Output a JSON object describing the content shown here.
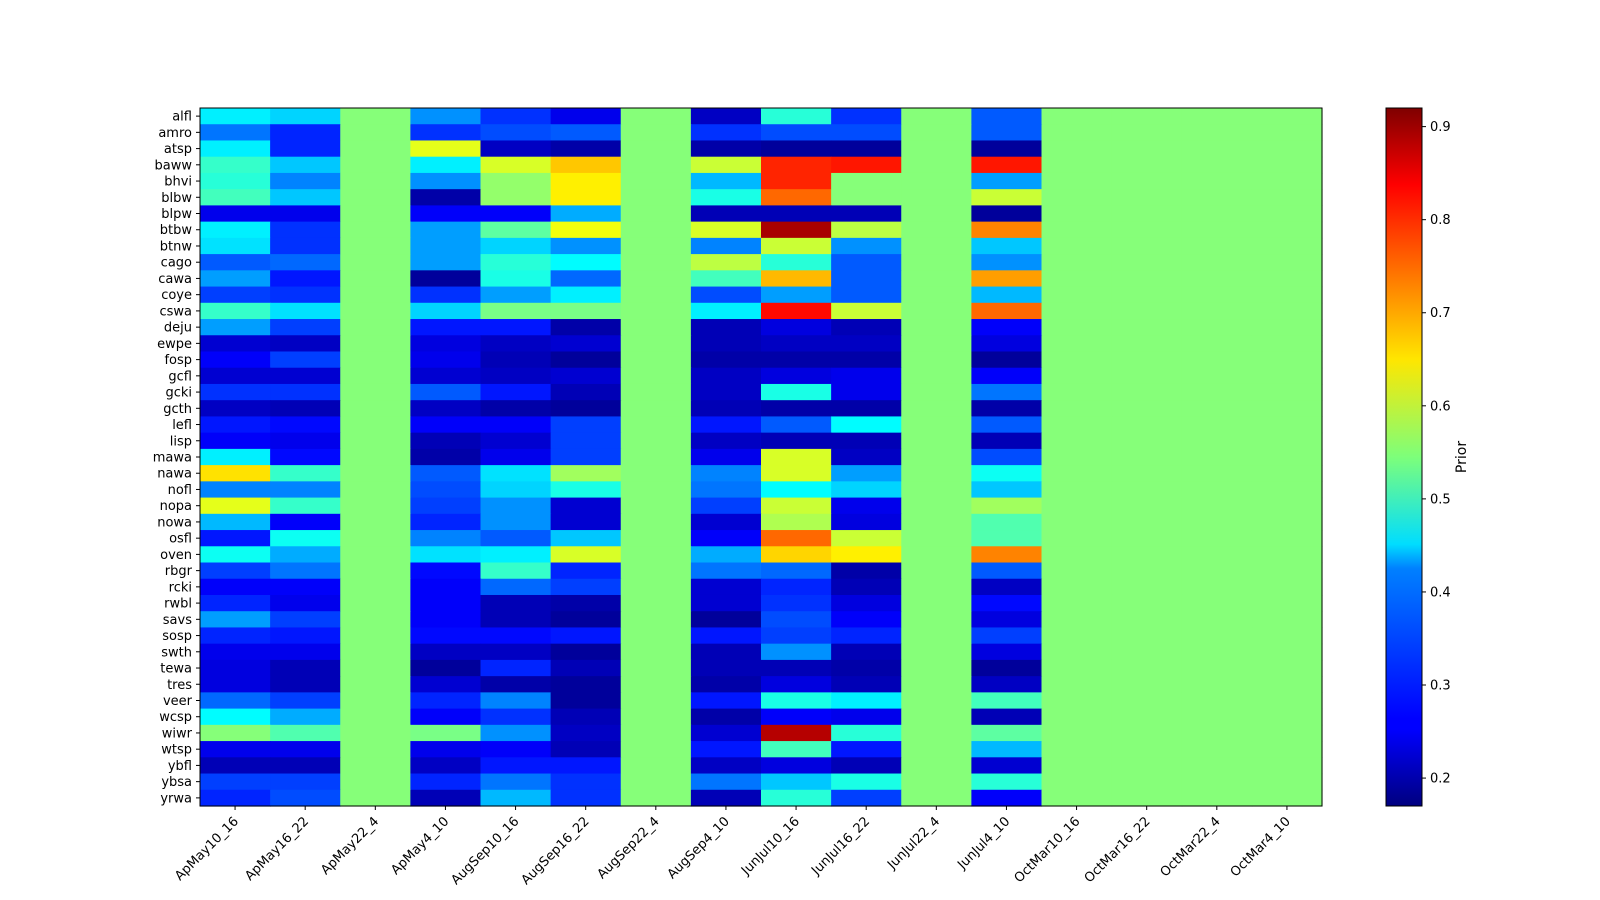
{
  "chart_data": {
    "type": "heatmap",
    "colormap": "jet",
    "title": "",
    "xlabel": "",
    "ylabel": "",
    "colorbar": {
      "label": "Prior",
      "range": [
        0.17,
        0.92
      ],
      "ticks": [
        "0.2",
        "0.3",
        "0.4",
        "0.5",
        "0.6",
        "0.7",
        "0.8",
        "0.9"
      ]
    },
    "x": [
      "ApMay10_16",
      "ApMay16_22",
      "ApMay22_4",
      "ApMay4_10",
      "AugSep10_16",
      "AugSep16_22",
      "AugSep22_4",
      "AugSep4_10",
      "JunJul10_16",
      "JunJul16_22",
      "JunJul22_4",
      "JunJul4_10",
      "OctMar10_16",
      "OctMar16_22",
      "OctMar22_4",
      "OctMar4_10"
    ],
    "y": [
      "alfl",
      "amro",
      "atsp",
      "baww",
      "bhvi",
      "blbw",
      "blpw",
      "btbw",
      "btnw",
      "cago",
      "cawa",
      "coye",
      "cswa",
      "deju",
      "ewpe",
      "fosp",
      "gcfl",
      "gcki",
      "gcth",
      "lefl",
      "lisp",
      "mawa",
      "nawa",
      "nofl",
      "nopa",
      "nowa",
      "osfl",
      "oven",
      "rbgr",
      "rcki",
      "rwbl",
      "savs",
      "sosp",
      "swth",
      "tewa",
      "tres",
      "veer",
      "wcsp",
      "wiwr",
      "wtsp",
      "ybfl",
      "ybsa",
      "yrwa"
    ],
    "z": [
      [
        0.44,
        0.42,
        0.55,
        0.37,
        0.3,
        0.25,
        0.55,
        0.22,
        0.48,
        0.3,
        0.55,
        0.33,
        0.55,
        0.55,
        0.55,
        0.55
      ],
      [
        0.35,
        0.29,
        0.55,
        0.3,
        0.32,
        0.33,
        0.55,
        0.3,
        0.32,
        0.32,
        0.55,
        0.33,
        0.55,
        0.55,
        0.55,
        0.55
      ],
      [
        0.44,
        0.29,
        0.55,
        0.62,
        0.22,
        0.2,
        0.55,
        0.2,
        0.19,
        0.19,
        0.55,
        0.19,
        0.55,
        0.55,
        0.55,
        0.55
      ],
      [
        0.49,
        0.41,
        0.55,
        0.44,
        0.61,
        0.68,
        0.55,
        0.6,
        0.8,
        0.81,
        0.55,
        0.81,
        0.55,
        0.55,
        0.55,
        0.55
      ],
      [
        0.48,
        0.36,
        0.55,
        0.37,
        0.56,
        0.65,
        0.55,
        0.4,
        0.8,
        0.55,
        0.55,
        0.38,
        0.55,
        0.55,
        0.55,
        0.55
      ],
      [
        0.5,
        0.41,
        0.55,
        0.2,
        0.56,
        0.65,
        0.55,
        0.47,
        0.75,
        0.55,
        0.55,
        0.6,
        0.55,
        0.55,
        0.55,
        0.55
      ],
      [
        0.25,
        0.25,
        0.55,
        0.26,
        0.26,
        0.39,
        0.55,
        0.21,
        0.21,
        0.21,
        0.55,
        0.19,
        0.55,
        0.55,
        0.55,
        0.55
      ],
      [
        0.44,
        0.3,
        0.55,
        0.38,
        0.52,
        0.63,
        0.55,
        0.61,
        0.89,
        0.59,
        0.55,
        0.73,
        0.55,
        0.55,
        0.55,
        0.55
      ],
      [
        0.43,
        0.3,
        0.55,
        0.38,
        0.42,
        0.37,
        0.55,
        0.36,
        0.6,
        0.37,
        0.55,
        0.41,
        0.55,
        0.55,
        0.55,
        0.55
      ],
      [
        0.33,
        0.34,
        0.55,
        0.38,
        0.48,
        0.45,
        0.55,
        0.59,
        0.48,
        0.33,
        0.55,
        0.37,
        0.55,
        0.55,
        0.55,
        0.55
      ],
      [
        0.38,
        0.28,
        0.55,
        0.19,
        0.47,
        0.34,
        0.55,
        0.5,
        0.69,
        0.33,
        0.55,
        0.71,
        0.55,
        0.55,
        0.55,
        0.55
      ],
      [
        0.31,
        0.3,
        0.55,
        0.3,
        0.38,
        0.44,
        0.55,
        0.32,
        0.38,
        0.33,
        0.55,
        0.4,
        0.55,
        0.55,
        0.55,
        0.55
      ],
      [
        0.49,
        0.43,
        0.55,
        0.42,
        0.54,
        0.54,
        0.55,
        0.44,
        0.82,
        0.6,
        0.55,
        0.75,
        0.55,
        0.55,
        0.55,
        0.55
      ],
      [
        0.38,
        0.31,
        0.55,
        0.28,
        0.28,
        0.2,
        0.55,
        0.21,
        0.24,
        0.21,
        0.55,
        0.26,
        0.55,
        0.55,
        0.55,
        0.55
      ],
      [
        0.23,
        0.22,
        0.55,
        0.24,
        0.22,
        0.23,
        0.55,
        0.21,
        0.22,
        0.22,
        0.55,
        0.24,
        0.55,
        0.55,
        0.55,
        0.55
      ],
      [
        0.26,
        0.31,
        0.55,
        0.25,
        0.21,
        0.19,
        0.55,
        0.2,
        0.2,
        0.2,
        0.55,
        0.19,
        0.55,
        0.55,
        0.55,
        0.55
      ],
      [
        0.23,
        0.23,
        0.55,
        0.23,
        0.22,
        0.23,
        0.55,
        0.22,
        0.24,
        0.25,
        0.55,
        0.26,
        0.55,
        0.55,
        0.55,
        0.55
      ],
      [
        0.3,
        0.3,
        0.55,
        0.33,
        0.28,
        0.21,
        0.55,
        0.22,
        0.47,
        0.25,
        0.55,
        0.35,
        0.55,
        0.55,
        0.55,
        0.55
      ],
      [
        0.22,
        0.21,
        0.55,
        0.22,
        0.2,
        0.19,
        0.55,
        0.21,
        0.2,
        0.2,
        0.55,
        0.2,
        0.55,
        0.55,
        0.55,
        0.55
      ],
      [
        0.28,
        0.27,
        0.55,
        0.26,
        0.26,
        0.31,
        0.55,
        0.28,
        0.33,
        0.45,
        0.55,
        0.33,
        0.55,
        0.55,
        0.55,
        0.55
      ],
      [
        0.26,
        0.25,
        0.55,
        0.21,
        0.23,
        0.31,
        0.55,
        0.22,
        0.21,
        0.21,
        0.55,
        0.21,
        0.55,
        0.55,
        0.55,
        0.55
      ],
      [
        0.44,
        0.27,
        0.55,
        0.2,
        0.25,
        0.31,
        0.55,
        0.25,
        0.61,
        0.22,
        0.55,
        0.32,
        0.55,
        0.55,
        0.55,
        0.55
      ],
      [
        0.66,
        0.49,
        0.55,
        0.33,
        0.43,
        0.57,
        0.55,
        0.36,
        0.61,
        0.38,
        0.55,
        0.46,
        0.55,
        0.55,
        0.55,
        0.55
      ],
      [
        0.36,
        0.36,
        0.55,
        0.32,
        0.42,
        0.47,
        0.55,
        0.35,
        0.45,
        0.42,
        0.55,
        0.41,
        0.55,
        0.55,
        0.55,
        0.55
      ],
      [
        0.62,
        0.49,
        0.55,
        0.31,
        0.37,
        0.23,
        0.55,
        0.31,
        0.6,
        0.25,
        0.55,
        0.57,
        0.55,
        0.55,
        0.55,
        0.55
      ],
      [
        0.4,
        0.26,
        0.55,
        0.29,
        0.37,
        0.23,
        0.55,
        0.23,
        0.58,
        0.24,
        0.55,
        0.51,
        0.55,
        0.55,
        0.55,
        0.55
      ],
      [
        0.28,
        0.46,
        0.55,
        0.36,
        0.33,
        0.41,
        0.55,
        0.26,
        0.75,
        0.6,
        0.55,
        0.51,
        0.55,
        0.55,
        0.55,
        0.55
      ],
      [
        0.46,
        0.39,
        0.55,
        0.43,
        0.44,
        0.61,
        0.55,
        0.39,
        0.67,
        0.65,
        0.55,
        0.73,
        0.55,
        0.55,
        0.55,
        0.55
      ],
      [
        0.31,
        0.35,
        0.55,
        0.27,
        0.49,
        0.29,
        0.55,
        0.35,
        0.34,
        0.2,
        0.55,
        0.33,
        0.55,
        0.55,
        0.55,
        0.55
      ],
      [
        0.26,
        0.26,
        0.55,
        0.26,
        0.34,
        0.31,
        0.55,
        0.23,
        0.29,
        0.21,
        0.55,
        0.22,
        0.55,
        0.55,
        0.55,
        0.55
      ],
      [
        0.29,
        0.25,
        0.55,
        0.26,
        0.21,
        0.2,
        0.55,
        0.23,
        0.3,
        0.24,
        0.55,
        0.27,
        0.55,
        0.55,
        0.55,
        0.55
      ],
      [
        0.38,
        0.31,
        0.55,
        0.26,
        0.21,
        0.19,
        0.55,
        0.19,
        0.32,
        0.26,
        0.55,
        0.24,
        0.55,
        0.55,
        0.55,
        0.55
      ],
      [
        0.29,
        0.28,
        0.55,
        0.27,
        0.27,
        0.28,
        0.55,
        0.28,
        0.31,
        0.29,
        0.55,
        0.31,
        0.55,
        0.55,
        0.55,
        0.55
      ],
      [
        0.25,
        0.25,
        0.55,
        0.22,
        0.22,
        0.19,
        0.55,
        0.21,
        0.37,
        0.21,
        0.55,
        0.24,
        0.55,
        0.55,
        0.55,
        0.55
      ],
      [
        0.24,
        0.21,
        0.55,
        0.19,
        0.29,
        0.21,
        0.55,
        0.21,
        0.21,
        0.2,
        0.55,
        0.19,
        0.55,
        0.55,
        0.55,
        0.55
      ],
      [
        0.24,
        0.21,
        0.55,
        0.23,
        0.2,
        0.19,
        0.55,
        0.2,
        0.24,
        0.21,
        0.55,
        0.22,
        0.55,
        0.55,
        0.55,
        0.55
      ],
      [
        0.34,
        0.31,
        0.55,
        0.29,
        0.36,
        0.19,
        0.55,
        0.28,
        0.47,
        0.44,
        0.55,
        0.5,
        0.55,
        0.55,
        0.55,
        0.55
      ],
      [
        0.45,
        0.39,
        0.55,
        0.26,
        0.3,
        0.21,
        0.55,
        0.2,
        0.26,
        0.25,
        0.55,
        0.21,
        0.55,
        0.55,
        0.55,
        0.55
      ],
      [
        0.55,
        0.51,
        0.55,
        0.54,
        0.37,
        0.22,
        0.55,
        0.23,
        0.88,
        0.48,
        0.55,
        0.52,
        0.55,
        0.55,
        0.55,
        0.55
      ],
      [
        0.25,
        0.25,
        0.55,
        0.25,
        0.26,
        0.21,
        0.55,
        0.28,
        0.5,
        0.28,
        0.55,
        0.4,
        0.55,
        0.55,
        0.55,
        0.55
      ],
      [
        0.21,
        0.21,
        0.55,
        0.22,
        0.28,
        0.28,
        0.55,
        0.22,
        0.24,
        0.21,
        0.55,
        0.23,
        0.55,
        0.55,
        0.55,
        0.55
      ],
      [
        0.31,
        0.31,
        0.55,
        0.29,
        0.35,
        0.3,
        0.55,
        0.35,
        0.41,
        0.47,
        0.55,
        0.48,
        0.55,
        0.55,
        0.55,
        0.55
      ],
      [
        0.29,
        0.32,
        0.55,
        0.21,
        0.4,
        0.3,
        0.55,
        0.21,
        0.48,
        0.31,
        0.55,
        0.26,
        0.55,
        0.55,
        0.55,
        0.55
      ]
    ]
  }
}
